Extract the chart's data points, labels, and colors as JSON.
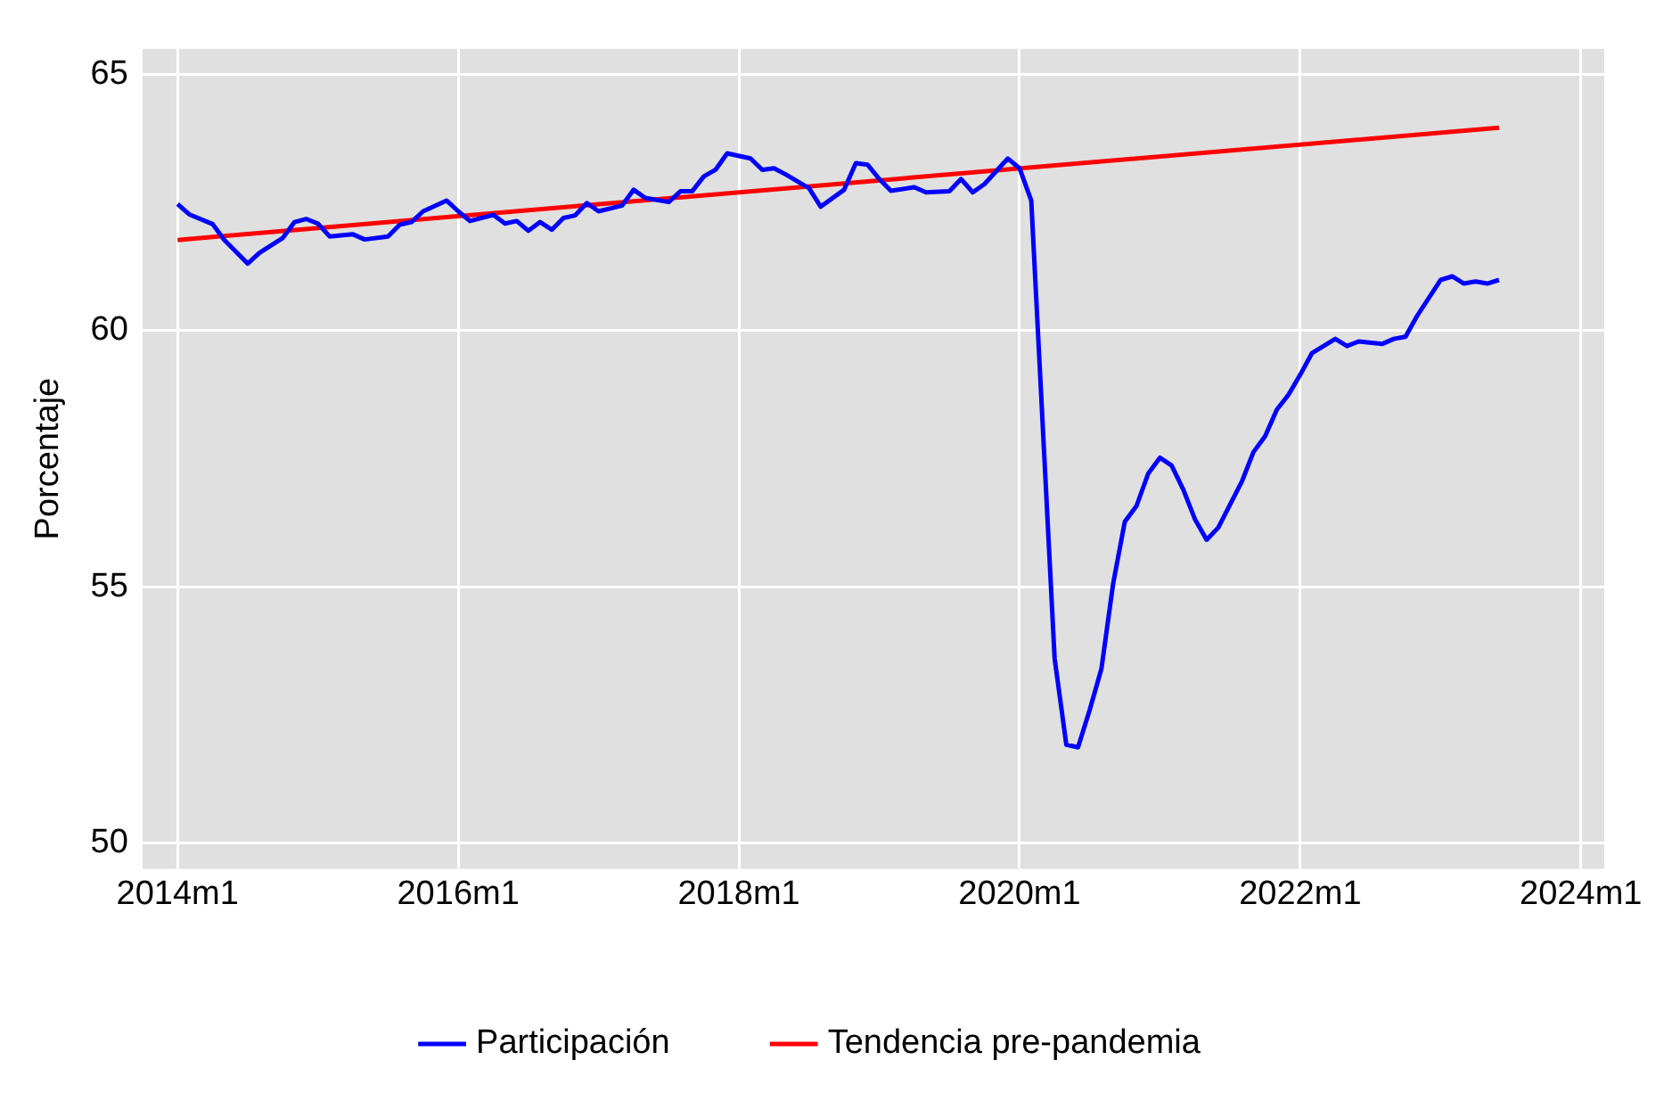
{
  "chart_data": {
    "type": "line",
    "ylabel": "Porcentaje",
    "xlim": [
      "2013-10",
      "2024-03"
    ],
    "ylim": [
      49.5,
      65.5
    ],
    "xticks": [
      {
        "value": "2014-01",
        "label": "2014m1"
      },
      {
        "value": "2016-01",
        "label": "2016m1"
      },
      {
        "value": "2018-01",
        "label": "2018m1"
      },
      {
        "value": "2020-01",
        "label": "2020m1"
      },
      {
        "value": "2022-01",
        "label": "2022m1"
      },
      {
        "value": "2024-01",
        "label": "2024m1"
      }
    ],
    "yticks": [
      50,
      55,
      60,
      65
    ],
    "grid": true,
    "legend": "bottom",
    "marker": "none",
    "line_style": "solid",
    "series": [
      {
        "name": "Participación",
        "color": "#0000ff",
        "x": [
          "2014-01",
          "2014-02",
          "2014-04",
          "2014-05",
          "2014-07",
          "2014-08",
          "2014-10",
          "2014-11",
          "2014-12",
          "2015-01",
          "2015-02",
          "2015-04",
          "2015-05",
          "2015-07",
          "2015-08",
          "2015-09",
          "2015-10",
          "2015-12",
          "2016-01",
          "2016-02",
          "2016-04",
          "2016-05",
          "2016-06",
          "2016-07",
          "2016-08",
          "2016-09",
          "2016-10",
          "2016-11",
          "2016-12",
          "2017-01",
          "2017-03",
          "2017-04",
          "2017-05",
          "2017-07",
          "2017-08",
          "2017-09",
          "2017-10",
          "2017-11",
          "2017-12",
          "2018-02",
          "2018-03",
          "2018-04",
          "2018-05",
          "2018-07",
          "2018-08",
          "2018-10",
          "2018-11",
          "2018-12",
          "2019-01",
          "2019-02",
          "2019-04",
          "2019-05",
          "2019-07",
          "2019-08",
          "2019-09",
          "2019-10",
          "2019-12",
          "2020-01",
          "2020-02",
          "2020-04",
          "2020-05",
          "2020-06",
          "2020-07",
          "2020-08",
          "2020-09",
          "2020-10",
          "2020-11",
          "2020-12",
          "2021-01",
          "2021-02",
          "2021-03",
          "2021-04",
          "2021-05",
          "2021-06",
          "2021-08",
          "2021-09",
          "2021-10",
          "2021-11",
          "2021-12",
          "2022-01",
          "2022-02",
          "2022-04",
          "2022-05",
          "2022-06",
          "2022-08",
          "2022-09",
          "2022-10",
          "2022-11",
          "2023-01",
          "2023-02",
          "2023-03",
          "2023-04",
          "2023-05",
          "2023-06"
        ],
        "values": [
          62.47,
          62.27,
          62.08,
          61.77,
          61.31,
          61.52,
          61.81,
          62.12,
          62.18,
          62.09,
          61.84,
          61.88,
          61.78,
          61.84,
          62.07,
          62.12,
          62.33,
          62.54,
          62.33,
          62.14,
          62.26,
          62.09,
          62.14,
          61.95,
          62.12,
          61.97,
          62.2,
          62.25,
          62.49,
          62.33,
          62.44,
          62.75,
          62.59,
          62.51,
          62.72,
          62.72,
          63.01,
          63.14,
          63.46,
          63.36,
          63.14,
          63.17,
          63.05,
          62.78,
          62.42,
          62.75,
          63.27,
          63.24,
          62.96,
          62.73,
          62.8,
          62.7,
          62.72,
          62.96,
          62.7,
          62.86,
          63.36,
          63.17,
          62.54,
          53.6,
          51.92,
          51.87,
          52.6,
          53.4,
          55.06,
          56.27,
          56.58,
          57.21,
          57.52,
          57.37,
          56.9,
          56.32,
          55.92,
          56.16,
          57.05,
          57.63,
          57.94,
          58.46,
          58.75,
          59.14,
          59.56,
          59.84,
          59.7,
          59.79,
          59.74,
          59.84,
          59.88,
          60.29,
          60.99,
          61.06,
          60.92,
          60.96,
          60.92,
          60.99
        ]
      },
      {
        "name": "Tendencia pre-pandemia",
        "color": "#ff0000",
        "x": [
          "2014-01",
          "2023-06"
        ],
        "values": [
          61.77,
          63.96
        ]
      }
    ]
  }
}
